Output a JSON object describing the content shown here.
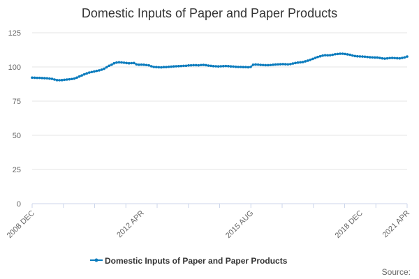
{
  "chart_data": {
    "type": "line",
    "title": "Domestic Inputs of Paper and Paper Products",
    "xlabel": "",
    "ylabel": "",
    "ylim": [
      0,
      125
    ],
    "yticks": [
      0,
      25,
      50,
      75,
      100,
      125
    ],
    "xticks": [
      "2008 DEC",
      "2012 APR",
      "2015 AUG",
      "2018 DEC",
      "2021 APR"
    ],
    "grid": "horizontal",
    "legend": "bottom",
    "credit": "Source:",
    "x_start": "2008 DEC",
    "x_end": "2021 APR",
    "x_frequency": "monthly",
    "series": [
      {
        "name": "Domestic Inputs of Paper and Paper Products",
        "color": "#0a7bbd",
        "values": [
          92.2,
          92.1,
          92.0,
          92.0,
          91.9,
          91.8,
          91.7,
          91.5,
          91.3,
          90.8,
          90.4,
          90.3,
          90.4,
          90.6,
          90.8,
          91.0,
          91.2,
          91.5,
          92.2,
          93.0,
          93.8,
          94.6,
          95.3,
          95.9,
          96.3,
          96.7,
          97.1,
          97.5,
          98.0,
          98.7,
          99.8,
          100.9,
          101.6,
          102.7,
          103.2,
          103.4,
          103.3,
          103.1,
          102.9,
          102.7,
          102.8,
          102.9,
          101.9,
          101.6,
          101.7,
          101.6,
          101.4,
          101.2,
          100.5,
          100.0,
          99.9,
          99.8,
          99.7,
          99.9,
          99.9,
          100.1,
          100.2,
          100.4,
          100.5,
          100.6,
          100.7,
          100.8,
          100.9,
          101.1,
          101.2,
          101.3,
          101.3,
          101.2,
          101.4,
          101.5,
          101.3,
          101.0,
          100.8,
          100.6,
          100.5,
          100.4,
          100.5,
          100.6,
          100.7,
          100.6,
          100.4,
          100.3,
          100.1,
          100.0,
          100.0,
          99.9,
          99.9,
          99.8,
          100.0,
          101.6,
          101.8,
          101.7,
          101.5,
          101.4,
          101.3,
          101.3,
          101.4,
          101.6,
          101.8,
          101.9,
          102.0,
          102.1,
          102.0,
          101.9,
          102.1,
          102.5,
          102.9,
          103.2,
          103.4,
          103.6,
          104.1,
          104.6,
          105.2,
          105.9,
          106.6,
          107.3,
          107.8,
          108.3,
          108.6,
          108.5,
          108.6,
          108.9,
          109.3,
          109.5,
          109.7,
          109.7,
          109.5,
          109.2,
          108.9,
          108.4,
          108.0,
          107.8,
          107.7,
          107.6,
          107.5,
          107.3,
          107.1,
          107.0,
          106.9,
          106.9,
          106.6,
          106.3,
          106.1,
          106.3,
          106.5,
          106.6,
          106.5,
          106.4,
          106.3,
          106.6,
          107.0,
          107.6
        ]
      }
    ]
  }
}
